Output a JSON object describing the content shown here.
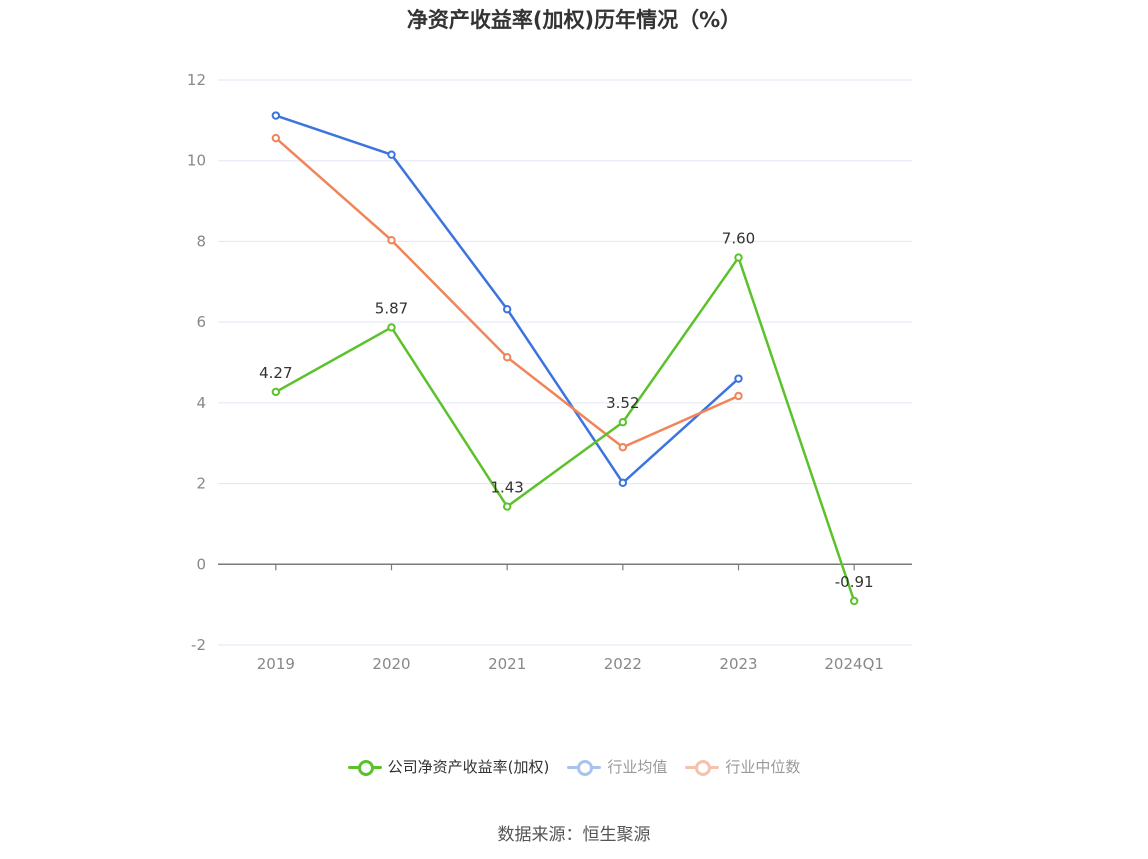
{
  "chart_data": {
    "type": "line",
    "title": "净资产收益率(加权)历年情况（%）",
    "categories": [
      "2019",
      "2020",
      "2021",
      "2022",
      "2023",
      "2024Q1"
    ],
    "ylim": [
      -2,
      12
    ],
    "yticks": [
      "-2",
      "0",
      "2",
      "4",
      "6",
      "8",
      "10",
      "12"
    ],
    "grid": true,
    "legend_position": "bottom",
    "series": [
      {
        "name": "公司净资产收益率(加权)",
        "color": "#5cc22b",
        "values": [
          4.27,
          5.87,
          1.43,
          3.52,
          7.6,
          -0.91
        ],
        "labels": [
          "4.27",
          "5.87",
          "1.43",
          "3.52",
          "7.60",
          "-0.91"
        ]
      },
      {
        "name": "行业均值",
        "color": "#3b74e0",
        "values": [
          11.12,
          10.15,
          6.32,
          2.02,
          4.6,
          null
        ]
      },
      {
        "name": "行业中位数",
        "color": "#f0855a",
        "values": [
          10.56,
          8.03,
          5.13,
          2.9,
          4.17,
          null
        ]
      }
    ]
  },
  "legend": {
    "items": [
      {
        "label": "公司净资产收益率(加权)",
        "color": "#5cc22b",
        "active": true
      },
      {
        "label": "行业均值",
        "color": "#a9c3f0",
        "active": false
      },
      {
        "label": "行业中位数",
        "color": "#f5c2ad",
        "active": false
      }
    ]
  },
  "source": "数据来源：恒生聚源"
}
